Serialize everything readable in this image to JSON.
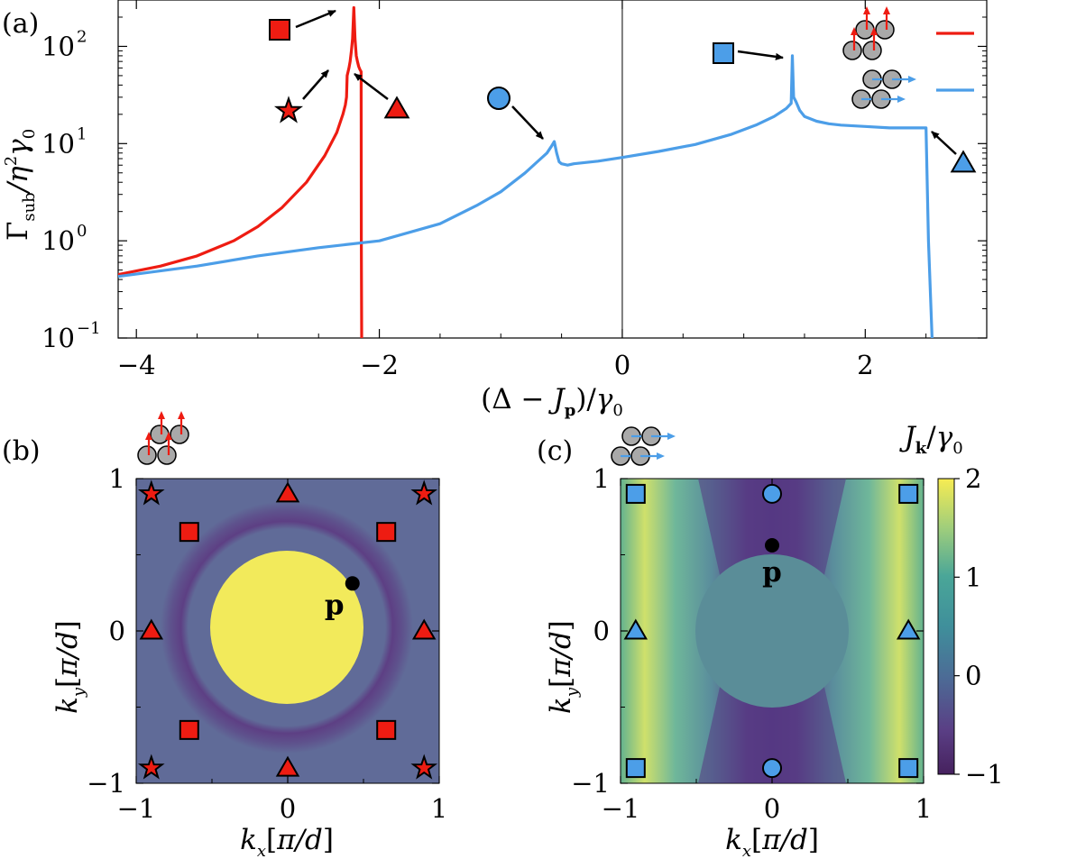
{
  "colors": {
    "red": "#ee1c12",
    "blue": "#4c9ee8",
    "gray": "#a9a9a9",
    "panel_b_bg": "#606b98",
    "disk_yellow": "#f2ea5b",
    "ring_purple": "#5d3d83"
  },
  "chart_data": [
    {
      "panel": "(a)",
      "type": "line",
      "xlabel": "(Δ − J_p)/γ0",
      "ylabel": "Γsub/η²γ0",
      "xlim": [
        -4.15,
        3.0
      ],
      "ylim": [
        0.1,
        300
      ],
      "yscale": "log",
      "xticks": [
        "−4",
        "−2",
        "0",
        "2"
      ],
      "yticks": [
        "10",
        "10",
        "10",
        "10"
      ],
      "ytick_exponents": [
        "2",
        "1",
        "0",
        "−1"
      ],
      "ytick_values": [
        100,
        10,
        1,
        0.1
      ],
      "xtick_values": [
        -4,
        -2,
        0,
        2
      ],
      "vline_x": 0,
      "series": [
        {
          "color": "#ee1c12",
          "x": [
            -4.15,
            -3.8,
            -3.5,
            -3.2,
            -3.0,
            -2.8,
            -2.6,
            -2.45,
            -2.35,
            -2.3,
            -2.28,
            -2.27,
            -2.265,
            -2.25,
            -2.24,
            -2.23,
            -2.22,
            -2.21,
            -2.2,
            -2.19,
            -2.18,
            -2.17,
            -2.16,
            -2.15,
            -2.148,
            -2.145
          ],
          "y": [
            0.45,
            0.55,
            0.7,
            1.0,
            1.4,
            2.2,
            4.0,
            7.5,
            13,
            20,
            25,
            30,
            50,
            60,
            70,
            90,
            120,
            250,
            120,
            80,
            70,
            62,
            58,
            55,
            1.0,
            0.1
          ]
        },
        {
          "color": "#4c9ee8",
          "x": [
            -4.15,
            -3.5,
            -3.0,
            -2.5,
            -2.0,
            -1.5,
            -1.2,
            -1.0,
            -0.8,
            -0.7,
            -0.62,
            -0.58,
            -0.56,
            -0.54,
            -0.52,
            -0.5,
            -0.45,
            -0.4,
            -0.2,
            0.0,
            0.3,
            0.6,
            0.9,
            1.1,
            1.25,
            1.35,
            1.39,
            1.4,
            1.41,
            1.43,
            1.46,
            1.5,
            1.6,
            1.7,
            1.8,
            2.0,
            2.2,
            2.4,
            2.5,
            2.52,
            2.55
          ],
          "y": [
            0.43,
            0.55,
            0.7,
            0.85,
            1.0,
            1.5,
            2.3,
            3.2,
            5.0,
            6.5,
            8.0,
            9.5,
            10.5,
            8.0,
            6.5,
            6.2,
            6.0,
            6.2,
            6.6,
            7.2,
            8.3,
            9.8,
            12.5,
            15.5,
            19,
            23,
            26,
            80,
            30,
            27,
            22,
            19,
            17,
            16,
            15.5,
            15,
            14.5,
            14.5,
            14.5,
            1.0,
            0.1
          ]
        }
      ],
      "markers": [
        {
          "shape": "square",
          "color": "#ee1c12"
        },
        {
          "shape": "star",
          "color": "#ee1c12"
        },
        {
          "shape": "triangle",
          "color": "#ee1c12"
        },
        {
          "shape": "circle",
          "color": "#4c9ee8"
        },
        {
          "shape": "square",
          "color": "#4c9ee8"
        },
        {
          "shape": "triangle",
          "color": "#4c9ee8"
        }
      ],
      "legend": "top-right"
    },
    {
      "panel": "(b)",
      "type": "heatmap",
      "xlabel": "kx[π/d]",
      "ylabel": "ky[π/d]",
      "xticks": [
        "−1",
        "0",
        "1"
      ],
      "yticks": [
        "1",
        "0",
        "−1"
      ],
      "point_label": "p",
      "point": [
        0.32,
        0.3
      ],
      "markers": [
        {
          "shape": "star",
          "k": [
            -0.9,
            0.9
          ]
        },
        {
          "shape": "star",
          "k": [
            0.9,
            0.9
          ]
        },
        {
          "shape": "star",
          "k": [
            -0.9,
            -0.9
          ]
        },
        {
          "shape": "star",
          "k": [
            0.9,
            -0.9
          ]
        },
        {
          "shape": "triangle",
          "k": [
            0,
            0.9
          ]
        },
        {
          "shape": "triangle",
          "k": [
            0,
            -0.9
          ]
        },
        {
          "shape": "triangle",
          "k": [
            -0.9,
            0
          ]
        },
        {
          "shape": "triangle",
          "k": [
            0.9,
            0
          ]
        },
        {
          "shape": "square",
          "k": [
            -0.65,
            0.65
          ]
        },
        {
          "shape": "square",
          "k": [
            0.65,
            0.65
          ]
        },
        {
          "shape": "square",
          "k": [
            -0.65,
            -0.65
          ]
        },
        {
          "shape": "square",
          "k": [
            0.65,
            -0.65
          ]
        }
      ]
    },
    {
      "panel": "(c)",
      "type": "heatmap",
      "xlabel": "kx[π/d]",
      "ylabel": "ky[π/d]",
      "xticks": [
        "−1",
        "0",
        "1"
      ],
      "yticks": [
        "1",
        "0",
        "−1"
      ],
      "point_label": "p",
      "point": [
        0,
        0.42
      ],
      "colorbar_label": "J_k/γ0",
      "colorbar_ticks": [
        "2",
        "1",
        "0",
        "−1"
      ],
      "colorbar_range": [
        -1,
        2
      ],
      "markers": [
        {
          "shape": "square",
          "k": [
            -0.9,
            0.9
          ]
        },
        {
          "shape": "square",
          "k": [
            0.9,
            0.9
          ]
        },
        {
          "shape": "square",
          "k": [
            -0.9,
            -0.9
          ]
        },
        {
          "shape": "square",
          "k": [
            0.9,
            -0.9
          ]
        },
        {
          "shape": "circle",
          "k": [
            0,
            0.9
          ]
        },
        {
          "shape": "circle",
          "k": [
            0,
            -0.9
          ]
        },
        {
          "shape": "triangle",
          "k": [
            -0.9,
            0
          ]
        },
        {
          "shape": "triangle",
          "k": [
            0.9,
            0
          ]
        }
      ]
    }
  ]
}
